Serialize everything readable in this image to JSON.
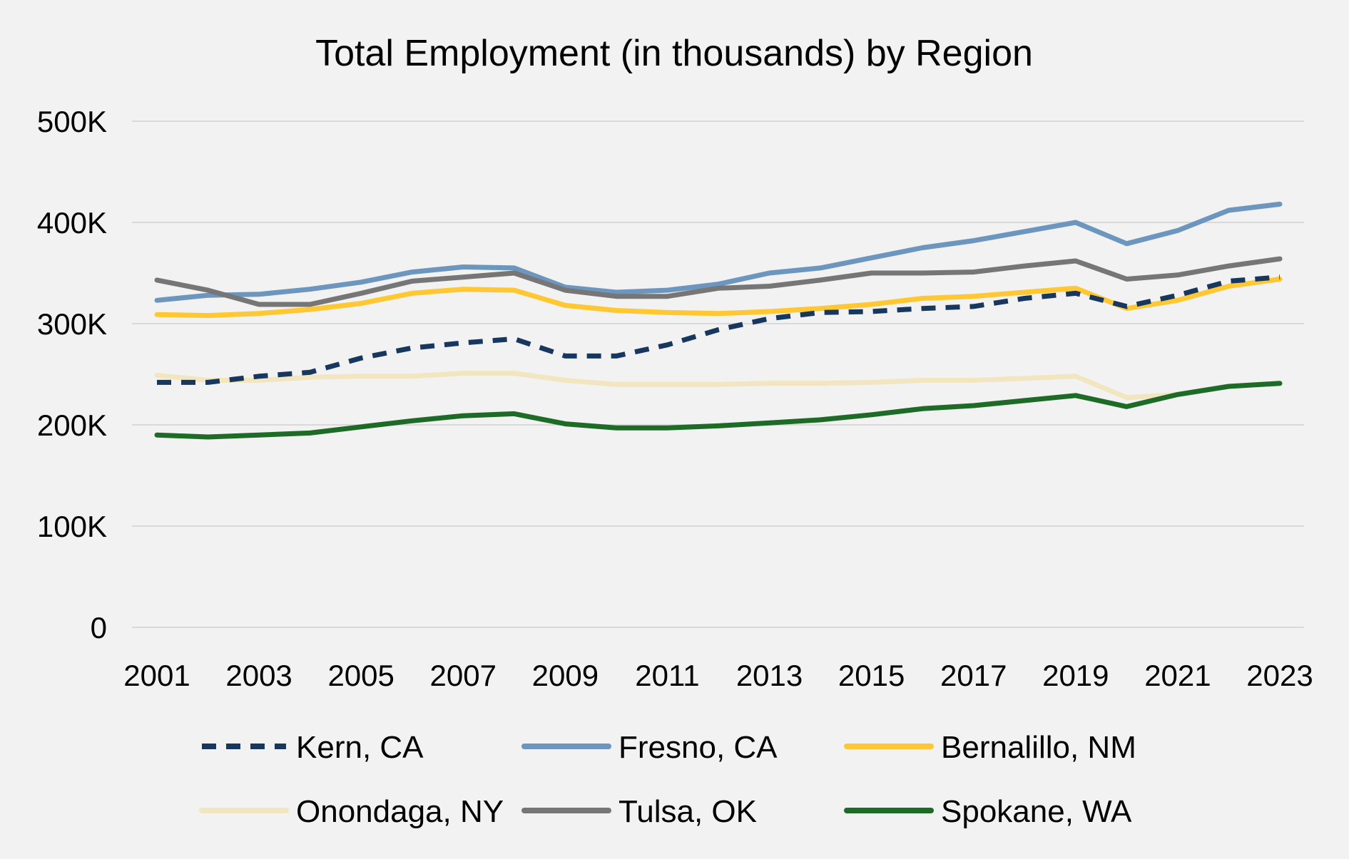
{
  "chart_data": {
    "type": "line",
    "title": "Total Employment (in thousands) by Region",
    "xlabel": "",
    "ylabel": "",
    "x": [
      2001,
      2002,
      2003,
      2004,
      2005,
      2006,
      2007,
      2008,
      2009,
      2010,
      2011,
      2012,
      2013,
      2014,
      2015,
      2016,
      2017,
      2018,
      2019,
      2020,
      2021,
      2022,
      2023
    ],
    "x_tick_labels": [
      "2001",
      "2003",
      "2005",
      "2007",
      "2009",
      "2011",
      "2013",
      "2015",
      "2017",
      "2019",
      "2021",
      "2023"
    ],
    "ylim": [
      0,
      500000
    ],
    "y_ticks": [
      0,
      100000,
      200000,
      300000,
      400000,
      500000
    ],
    "y_tick_labels": [
      "0",
      "100K",
      "200K",
      "300K",
      "400K",
      "500K"
    ],
    "grid": "horizontal",
    "legend_position": "bottom",
    "series": [
      {
        "name": "Kern, CA",
        "color": "#17375e",
        "dash": "dashed",
        "values": [
          242000,
          242000,
          248000,
          252000,
          266000,
          276000,
          281000,
          285000,
          268000,
          268000,
          279000,
          294000,
          305000,
          311000,
          312000,
          315000,
          317000,
          325000,
          330000,
          317000,
          328000,
          342000,
          346000
        ]
      },
      {
        "name": "Fresno, CA",
        "color": "#6d96bf",
        "dash": "solid",
        "values": [
          323000,
          328000,
          329000,
          334000,
          341000,
          351000,
          356000,
          355000,
          336000,
          331000,
          333000,
          339000,
          350000,
          355000,
          365000,
          375000,
          382000,
          391000,
          400000,
          379000,
          392000,
          412000,
          418000
        ]
      },
      {
        "name": "Bernalillo, NM",
        "color": "#ffc832",
        "dash": "solid",
        "values": [
          309000,
          308000,
          310000,
          314000,
          320000,
          330000,
          334000,
          333000,
          318000,
          313000,
          311000,
          310000,
          312000,
          315000,
          319000,
          325000,
          327000,
          331000,
          335000,
          315000,
          323000,
          337000,
          344000
        ]
      },
      {
        "name": "Onondaga, NY",
        "color": "#f2e6c0",
        "dash": "solid",
        "values": [
          249000,
          244000,
          244000,
          247000,
          248000,
          248000,
          251000,
          251000,
          244000,
          240000,
          240000,
          240000,
          241000,
          241000,
          242000,
          244000,
          244000,
          246000,
          248000,
          227000,
          230000,
          null,
          null
        ]
      },
      {
        "name": "Tulsa, OK",
        "color": "#767676",
        "dash": "solid",
        "values": [
          343000,
          333000,
          319000,
          319000,
          330000,
          342000,
          346000,
          350000,
          333000,
          327000,
          327000,
          335000,
          337000,
          343000,
          350000,
          350000,
          351000,
          357000,
          362000,
          344000,
          348000,
          357000,
          364000
        ]
      },
      {
        "name": "Spokane, WA",
        "color": "#1e6b28",
        "dash": "solid",
        "values": [
          190000,
          188000,
          190000,
          192000,
          198000,
          204000,
          209000,
          211000,
          201000,
          197000,
          197000,
          199000,
          202000,
          205000,
          210000,
          216000,
          219000,
          224000,
          229000,
          218000,
          230000,
          238000,
          241000
        ]
      }
    ]
  }
}
